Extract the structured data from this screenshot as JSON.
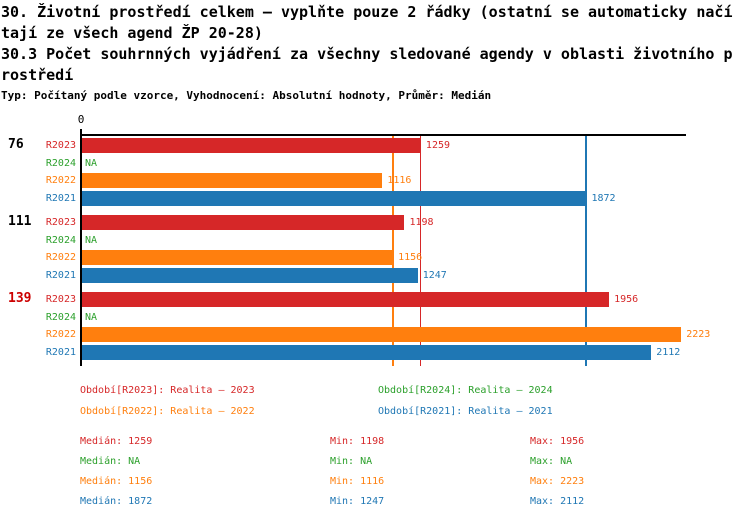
{
  "header": {
    "title_lines": [
      "30. Životní prostředí celkem – vyplňte pouze 2 řádky (ostatní se automaticky načí",
      "tají ze všech agend ŽP 20-28)",
      "30.3 Počet souhrnných vyjádření za všechny sledované agendy v oblasti životního p",
      "rostředí"
    ],
    "meta_line": "Typ: Počítaný podle vzorce, Vyhodnocení: Absolutní hodnoty, Průměr: Medián"
  },
  "chart_data": {
    "type": "bar",
    "orientation": "horizontal",
    "title": "30.3 Počet souhrnných vyjádření za všechny sledované agendy v oblasti životního prostředí",
    "x_axis": {
      "origin_label": "0",
      "min": 0,
      "max": 2244,
      "grid": false
    },
    "na_label": "NA",
    "groups": [
      "76",
      "111",
      "139"
    ],
    "group_label_colors": [
      "#000000",
      "#000000",
      "#cc0000"
    ],
    "series": [
      {
        "id": "R2023",
        "name": "Realita – 2023",
        "color": "#d62728",
        "values": [
          1259,
          1198,
          1956
        ]
      },
      {
        "id": "R2024",
        "name": "Realita – 2024",
        "color": "#2ca02c",
        "values": [
          null,
          null,
          null
        ]
      },
      {
        "id": "R2022",
        "name": "Realita – 2022",
        "color": "#ff7f0e",
        "values": [
          1116,
          1156,
          2223
        ]
      },
      {
        "id": "R2021",
        "name": "Realita – 2021",
        "color": "#1f77b4",
        "values": [
          1872,
          1247,
          2112
        ]
      }
    ],
    "median_lines": [
      {
        "series": "R2023",
        "value": 1259,
        "color": "#d62728"
      },
      {
        "series": "R2022",
        "value": 1156,
        "color": "#ff7f0e"
      },
      {
        "series": "R2021",
        "value": 1872,
        "color": "#1f77b4"
      }
    ]
  },
  "legend": {
    "items": [
      {
        "label": "Období[R2023]: Realita – 2023",
        "color": "#d62728"
      },
      {
        "label": "Období[R2024]: Realita – 2024",
        "color": "#2ca02c"
      },
      {
        "label": "Období[R2022]: Realita – 2022",
        "color": "#ff7f0e"
      },
      {
        "label": "Období[R2021]: Realita – 2021",
        "color": "#1f77b4"
      }
    ]
  },
  "stats": {
    "labels": {
      "median": "Medián",
      "min": "Min",
      "max": "Max"
    },
    "rows": [
      {
        "series": "R2023",
        "color": "#d62728",
        "median": "1259",
        "min": "1198",
        "max": "1956"
      },
      {
        "series": "R2024",
        "color": "#2ca02c",
        "median": "NA",
        "min": "NA",
        "max": "NA"
      },
      {
        "series": "R2022",
        "color": "#ff7f0e",
        "median": "1156",
        "min": "1116",
        "max": "2223"
      },
      {
        "series": "R2021",
        "color": "#1f77b4",
        "median": "1872",
        "min": "1247",
        "max": "2112"
      }
    ]
  }
}
